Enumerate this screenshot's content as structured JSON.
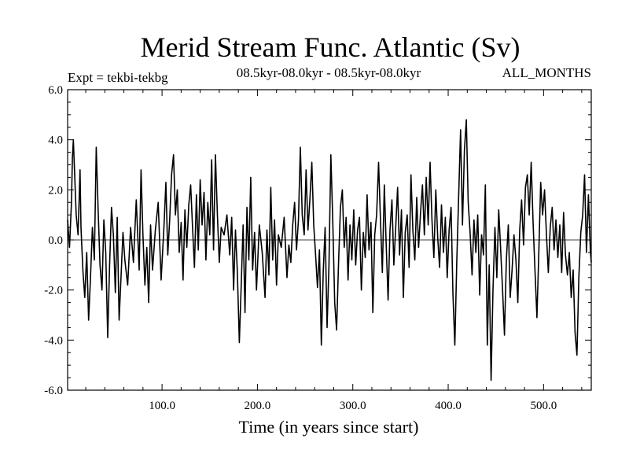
{
  "chart_data": {
    "type": "line",
    "title": "Merid Stream Func. Atlantic (Sv)",
    "subtitle": "08.5kyr-08.0kyr - 08.5kyr-08.0kyr",
    "experiment_label": "Expt = tekbi-tekbg",
    "period_label": "ALL_MONTHS",
    "xlabel": "Time (in years since start)",
    "ylabel": "",
    "xlim": [
      1,
      550
    ],
    "ylim": [
      -6.0,
      6.0
    ],
    "x_ticks": [
      100,
      200,
      300,
      400,
      500
    ],
    "x_tick_labels": [
      "100.0",
      "200.0",
      "300.0",
      "400.0",
      "500.0"
    ],
    "y_ticks": [
      6,
      4,
      2,
      0,
      -2,
      -4,
      -6
    ],
    "y_tick_labels": [
      "6.0",
      "4.0",
      "2.0",
      "0.0",
      "-2.0",
      "-4.0",
      "-6.0"
    ],
    "zero_line": true,
    "grid": false,
    "series": [
      {
        "name": "Merid Stream Func. Atlantic",
        "points": [
          [
            1,
            0.8
          ],
          [
            3,
            -0.3
          ],
          [
            5,
            1.5
          ],
          [
            6,
            3.3
          ],
          [
            7,
            4.0
          ],
          [
            8,
            3.0
          ],
          [
            10,
            1.0
          ],
          [
            12,
            0.2
          ],
          [
            14,
            2.8
          ],
          [
            15,
            0.5
          ],
          [
            17,
            -1.2
          ],
          [
            19,
            -2.3
          ],
          [
            21,
            -0.5
          ],
          [
            23,
            -3.2
          ],
          [
            25,
            -1.5
          ],
          [
            27,
            0.5
          ],
          [
            29,
            -0.8
          ],
          [
            31,
            3.7
          ],
          [
            33,
            1.2
          ],
          [
            35,
            -1.0
          ],
          [
            37,
            -2.0
          ],
          [
            39,
            0.8
          ],
          [
            41,
            -0.5
          ],
          [
            43,
            -3.9
          ],
          [
            45,
            -1.0
          ],
          [
            47,
            1.3
          ],
          [
            49,
            0.2
          ],
          [
            51,
            -2.1
          ],
          [
            53,
            0.9
          ],
          [
            55,
            -3.2
          ],
          [
            57,
            -1.5
          ],
          [
            59,
            0.3
          ],
          [
            61,
            -0.8
          ],
          [
            64,
            -1.8
          ],
          [
            67,
            0.5
          ],
          [
            70,
            -0.9
          ],
          [
            73,
            1.6
          ],
          [
            76,
            -1.2
          ],
          [
            78,
            2.8
          ],
          [
            80,
            0.2
          ],
          [
            82,
            -1.8
          ],
          [
            84,
            -0.3
          ],
          [
            86,
            -2.5
          ],
          [
            88,
            0.6
          ],
          [
            90,
            -1.2
          ],
          [
            93,
            0.4
          ],
          [
            96,
            1.5
          ],
          [
            99,
            -1.6
          ],
          [
            102,
            0.5
          ],
          [
            104,
            2.3
          ],
          [
            106,
            -0.6
          ],
          [
            108,
            0.8
          ],
          [
            110,
            2.6
          ],
          [
            112,
            3.4
          ],
          [
            114,
            1.0
          ],
          [
            116,
            2.0
          ],
          [
            118,
            -0.5
          ],
          [
            120,
            0.7
          ],
          [
            122,
            -1.6
          ],
          [
            124,
            1.2
          ],
          [
            126,
            -0.3
          ],
          [
            128,
            1.4
          ],
          [
            130,
            2.2
          ],
          [
            132,
            0.5
          ],
          [
            134,
            -1.1
          ],
          [
            136,
            1.8
          ],
          [
            138,
            -0.4
          ],
          [
            140,
            2.4
          ],
          [
            142,
            0.6
          ],
          [
            144,
            1.9
          ],
          [
            146,
            -0.8
          ],
          [
            148,
            1.5
          ],
          [
            150,
            0.2
          ],
          [
            152,
            3.2
          ],
          [
            154,
            -0.4
          ],
          [
            156,
            3.4
          ],
          [
            158,
            1.0
          ],
          [
            160,
            -0.9
          ],
          [
            162,
            0.5
          ],
          [
            165,
            0.2
          ],
          [
            168,
            1.0
          ],
          [
            171,
            -0.6
          ],
          [
            173,
            0.9
          ],
          [
            175,
            -2.0
          ],
          [
            177,
            0.4
          ],
          [
            179,
            -1.3
          ],
          [
            181,
            -4.1
          ],
          [
            183,
            -1.8
          ],
          [
            185,
            0.6
          ],
          [
            187,
            -2.9
          ],
          [
            189,
            1.3
          ],
          [
            191,
            -0.8
          ],
          [
            193,
            2.5
          ],
          [
            195,
            -1.2
          ],
          [
            197,
            0.3
          ],
          [
            199,
            -2.0
          ],
          [
            202,
            0.6
          ],
          [
            205,
            -0.5
          ],
          [
            208,
            -2.3
          ],
          [
            210,
            0.4
          ],
          [
            212,
            -1.4
          ],
          [
            214,
            2.1
          ],
          [
            216,
            -0.8
          ],
          [
            218,
            0.8
          ],
          [
            220,
            -1.8
          ],
          [
            222,
            0.2
          ],
          [
            225,
            -0.3
          ],
          [
            228,
            0.9
          ],
          [
            231,
            -1.5
          ],
          [
            233,
            -0.2
          ],
          [
            235,
            -0.9
          ],
          [
            237,
            0.6
          ],
          [
            239,
            1.5
          ],
          [
            241,
            -0.4
          ],
          [
            243,
            0.8
          ],
          [
            245,
            3.7
          ],
          [
            247,
            1.0
          ],
          [
            249,
            0.2
          ],
          [
            251,
            2.8
          ],
          [
            253,
            0.4
          ],
          [
            255,
            1.6
          ],
          [
            257,
            3.1
          ],
          [
            259,
            0.6
          ],
          [
            261,
            -0.6
          ],
          [
            263,
            -1.9
          ],
          [
            265,
            -0.4
          ],
          [
            267,
            -4.2
          ],
          [
            269,
            -1.3
          ],
          [
            271,
            0.5
          ],
          [
            273,
            -3.5
          ],
          [
            275,
            -1.0
          ],
          [
            277,
            3.4
          ],
          [
            279,
            0.8
          ],
          [
            281,
            -2.5
          ],
          [
            283,
            -3.6
          ],
          [
            285,
            -1.0
          ],
          [
            287,
            1.3
          ],
          [
            289,
            2.0
          ],
          [
            291,
            -0.3
          ],
          [
            293,
            0.9
          ],
          [
            295,
            -1.6
          ],
          [
            297,
            0.6
          ],
          [
            299,
            -0.8
          ],
          [
            301,
            1.2
          ],
          [
            303,
            -1.0
          ],
          [
            305,
            0.4
          ],
          [
            307,
            0.9
          ],
          [
            309,
            -2.0
          ],
          [
            311,
            0.3
          ],
          [
            313,
            -0.7
          ],
          [
            315,
            1.8
          ],
          [
            317,
            -0.4
          ],
          [
            319,
            0.7
          ],
          [
            321,
            -2.9
          ],
          [
            323,
            0.2
          ],
          [
            325,
            1.0
          ],
          [
            327,
            3.1
          ],
          [
            329,
            0.8
          ],
          [
            331,
            -1.3
          ],
          [
            333,
            2.2
          ],
          [
            335,
            -0.2
          ],
          [
            337,
            -2.4
          ],
          [
            339,
            0.4
          ],
          [
            341,
            1.6
          ],
          [
            343,
            -1.0
          ],
          [
            345,
            0.5
          ],
          [
            347,
            2.1
          ],
          [
            349,
            -0.6
          ],
          [
            351,
            1.2
          ],
          [
            353,
            -2.3
          ],
          [
            355,
            0.3
          ],
          [
            357,
            1.0
          ],
          [
            359,
            -1.1
          ],
          [
            361,
            2.6
          ],
          [
            363,
            0.4
          ],
          [
            365,
            -0.8
          ],
          [
            367,
            1.7
          ],
          [
            369,
            -0.3
          ],
          [
            371,
            1.1
          ],
          [
            373,
            2.2
          ],
          [
            375,
            0.2
          ],
          [
            377,
            2.5
          ],
          [
            379,
            0.6
          ],
          [
            381,
            3.1
          ],
          [
            383,
            0.8
          ],
          [
            385,
            -0.7
          ],
          [
            387,
            2.0
          ],
          [
            389,
            0.1
          ],
          [
            391,
            -1.1
          ],
          [
            393,
            1.4
          ],
          [
            395,
            -0.5
          ],
          [
            397,
            0.9
          ],
          [
            399,
            -1.5
          ],
          [
            401,
            0.4
          ],
          [
            403,
            1.3
          ],
          [
            405,
            -2.2
          ],
          [
            407,
            -4.2
          ],
          [
            409,
            -0.8
          ],
          [
            411,
            1.8
          ],
          [
            413,
            4.4
          ],
          [
            415,
            0.6
          ],
          [
            417,
            3.6
          ],
          [
            419,
            4.8
          ],
          [
            421,
            1.5
          ],
          [
            423,
            0.3
          ],
          [
            425,
            -1.4
          ],
          [
            427,
            0.8
          ],
          [
            429,
            -0.5
          ],
          [
            431,
            1.0
          ],
          [
            433,
            -2.2
          ],
          [
            435,
            0.2
          ],
          [
            437,
            -0.6
          ],
          [
            439,
            2.2
          ],
          [
            441,
            -4.2
          ],
          [
            443,
            -1.0
          ],
          [
            445,
            -5.6
          ],
          [
            447,
            -2.0
          ],
          [
            449,
            0.5
          ],
          [
            451,
            -1.5
          ],
          [
            453,
            1.2
          ],
          [
            455,
            -0.4
          ],
          [
            457,
            -2.0
          ],
          [
            459,
            -3.8
          ],
          [
            461,
            -0.8
          ],
          [
            463,
            0.6
          ],
          [
            465,
            -2.3
          ],
          [
            467,
            -1.2
          ],
          [
            469,
            0.2
          ],
          [
            471,
            -0.8
          ],
          [
            473,
            -2.5
          ],
          [
            475,
            0.4
          ],
          [
            477,
            1.6
          ],
          [
            479,
            -0.2
          ],
          [
            481,
            2.1
          ],
          [
            483,
            2.6
          ],
          [
            485,
            1.0
          ],
          [
            487,
            3.1
          ],
          [
            489,
            0.7
          ],
          [
            491,
            -1.2
          ],
          [
            493,
            -3.1
          ],
          [
            495,
            -0.5
          ],
          [
            497,
            2.3
          ],
          [
            499,
            1.0
          ],
          [
            501,
            2.0
          ],
          [
            503,
            0.2
          ],
          [
            505,
            -1.3
          ],
          [
            507,
            0.5
          ],
          [
            509,
            1.3
          ],
          [
            511,
            -0.4
          ],
          [
            513,
            0.8
          ],
          [
            515,
            -0.7
          ],
          [
            517,
            0.6
          ],
          [
            519,
            -1.3
          ],
          [
            521,
            1.1
          ],
          [
            523,
            -0.6
          ],
          [
            525,
            -1.4
          ],
          [
            527,
            -0.5
          ],
          [
            529,
            -2.3
          ],
          [
            531,
            -1.2
          ],
          [
            533,
            -3.7
          ],
          [
            535,
            -4.6
          ],
          [
            537,
            -1.5
          ],
          [
            539,
            0.3
          ],
          [
            541,
            1.0
          ],
          [
            543,
            2.6
          ],
          [
            545,
            -0.5
          ],
          [
            547,
            1.8
          ],
          [
            549,
            -0.4
          ],
          [
            550,
            -0.9
          ]
        ]
      }
    ]
  }
}
